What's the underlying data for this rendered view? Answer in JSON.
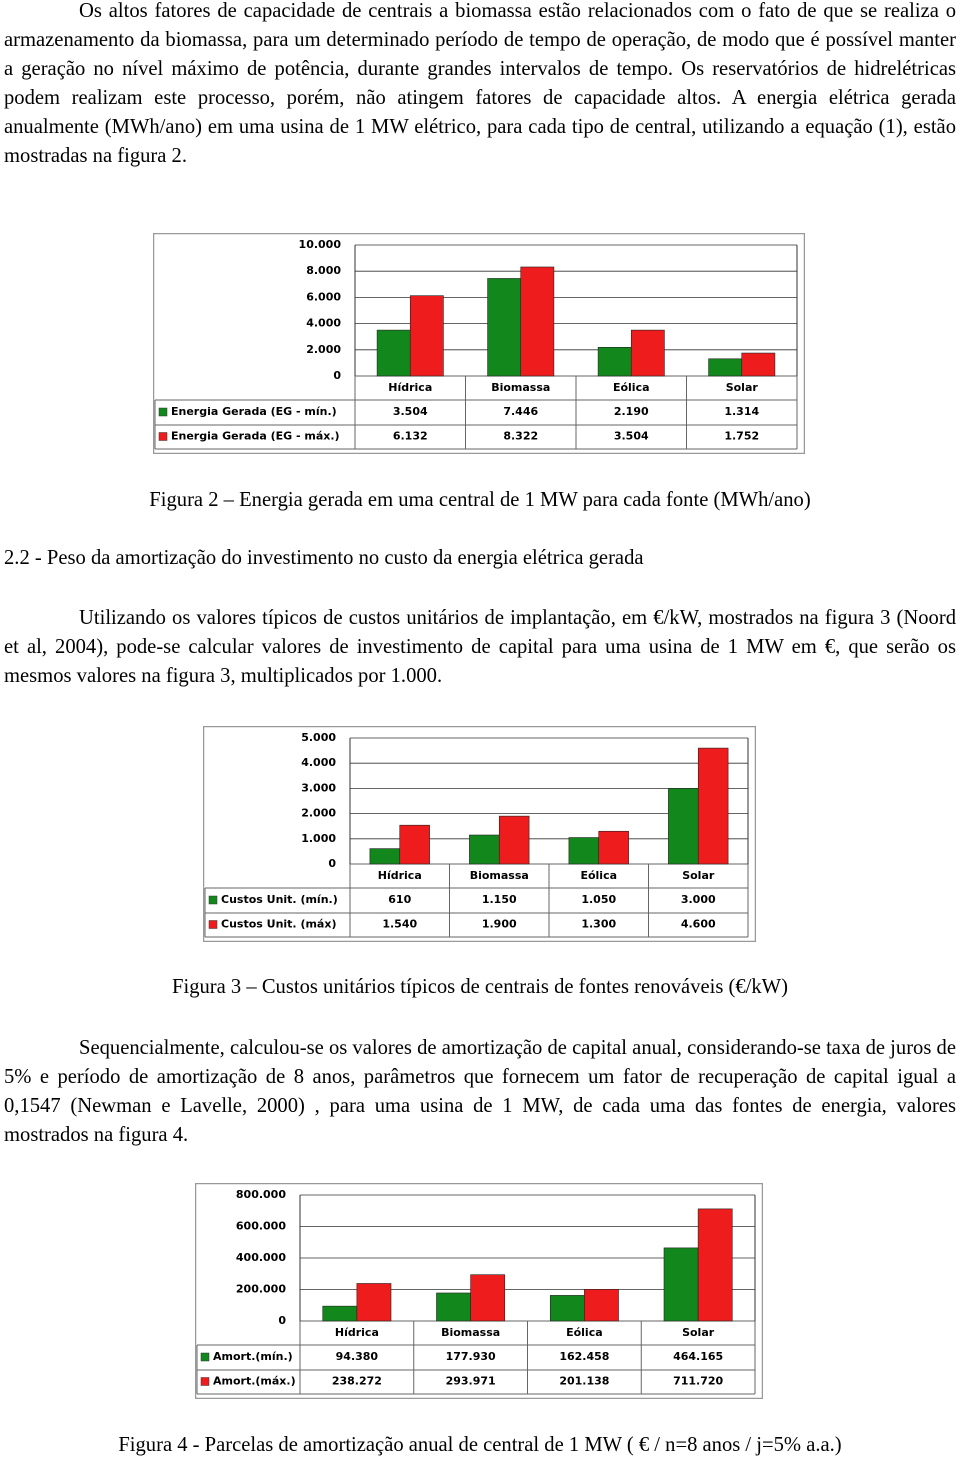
{
  "body": [
    "Os altos fatores de capacidade de centrais a biomassa estão relacionados com o fato de que se realiza o armazenamento da biomassa, para um determinado período de tempo de operação, de modo que é possível manter a geração no nível máximo de potência, durante grandes intervalos de tempo. Os reservatórios de hidrelétricas podem realizam este processo, porém, não atingem fatores de capacidade altos. A energia elétrica gerada anualmente (MWh/ano) em uma usina de 1 MW elétrico, para cada tipo de central, utilizando a equação (1), estão mostradas na figura 2.",
    "Utilizando os valores típicos de custos unitários de implantação, em €/kW, mostrados na figura 3 (Noord et al, 2004), pode-se calcular valores de investimento de capital para uma usina de 1 MW em €, que serão os mesmos valores na figura 3, multiplicados por 1.000.",
    "Sequencialmente, calculou-se os valores de amortização de capital anual, considerando-se taxa de juros de 5% e período de amortização de 8 anos, parâmetros que fornecem um fator de recuperação de capital igual a 0,1547 (Newman e Lavelle, 2000) , para uma usina de 1 MW, de cada uma das fontes de energia, valores mostrados na figura 4."
  ],
  "section_heading": "2.2 - Peso da amortização do investimento no custo da energia elétrica gerada",
  "figure_captions": [
    "Figura 2 – Energia gerada em uma central de 1 MW para cada fonte (MWh/ano)",
    "Figura 3 – Custos unitários típicos de centrais de fontes renováveis (€/kW)",
    "Figura 4 - Parcelas de amortização anual de central de 1 MW ( € / n=8 anos / j=5% a.a.)"
  ],
  "chart_data": [
    {
      "type": "bar",
      "categories": [
        "Hídrica",
        "Biomassa",
        "Eólica",
        "Solar"
      ],
      "series": [
        {
          "name": "Energia Gerada (EG - mín.)",
          "color": "#12881c",
          "values": [
            3504,
            7446,
            2190,
            1314
          ],
          "value_labels": [
            "3.504",
            "7.446",
            "2.190",
            "1.314"
          ]
        },
        {
          "name": "Energia Gerada (EG - máx.)",
          "color": "#ee1c1c",
          "values": [
            6132,
            8322,
            3504,
            1752
          ],
          "value_labels": [
            "6.132",
            "8.322",
            "3.504",
            "1.752"
          ]
        }
      ],
      "ylim": [
        0,
        10000
      ],
      "yticks": [
        0,
        {
          "value": 2000,
          "label": "2.000"
        },
        {
          "value": 4000,
          "label": "4.000"
        },
        {
          "value": 6000,
          "label": "6.000"
        },
        {
          "value": 8000,
          "label": "8.000"
        },
        {
          "value": 10000,
          "label": "10.000"
        }
      ],
      "grid": true
    },
    {
      "type": "bar",
      "categories": [
        "Hídrica",
        "Biomassa",
        "Eólica",
        "Solar"
      ],
      "series": [
        {
          "name": "Custos Unit. (mín.)",
          "color": "#12881c",
          "values": [
            610,
            1150,
            1050,
            3000
          ],
          "value_labels": [
            "610",
            "1.150",
            "1.050",
            "3.000"
          ]
        },
        {
          "name": "Custos Unit. (máx)",
          "color": "#ee1c1c",
          "values": [
            1540,
            1900,
            1300,
            4600
          ],
          "value_labels": [
            "1.540",
            "1.900",
            "1.300",
            "4.600"
          ]
        }
      ],
      "ylim": [
        0,
        5000
      ],
      "yticks": [
        0,
        {
          "value": 1000,
          "label": "1.000"
        },
        {
          "value": 2000,
          "label": "2.000"
        },
        {
          "value": 3000,
          "label": "3.000"
        },
        {
          "value": 4000,
          "label": "4.000"
        },
        {
          "value": 5000,
          "label": "5.000"
        }
      ],
      "grid": true
    },
    {
      "type": "bar",
      "categories": [
        "Hídrica",
        "Biomassa",
        "Eólica",
        "Solar"
      ],
      "series": [
        {
          "name": "Amort.(mín.)",
          "color": "#12881c",
          "values": [
            94380,
            177930,
            162458,
            464165
          ],
          "value_labels": [
            "94.380",
            "177.930",
            "162.458",
            "464.165"
          ]
        },
        {
          "name": "Amort.(máx.)",
          "color": "#ee1c1c",
          "values": [
            238272,
            293971,
            201138,
            711720
          ],
          "value_labels": [
            "238.272",
            "293.971",
            "201.138",
            "711.720"
          ]
        }
      ],
      "ylim": [
        0,
        800000
      ],
      "yticks": [
        0,
        {
          "value": 200000,
          "label": "200.000"
        },
        {
          "value": 400000,
          "label": "400.000"
        },
        {
          "value": 600000,
          "label": "600.000"
        },
        {
          "value": 800000,
          "label": "800.000"
        }
      ],
      "grid": true
    }
  ]
}
